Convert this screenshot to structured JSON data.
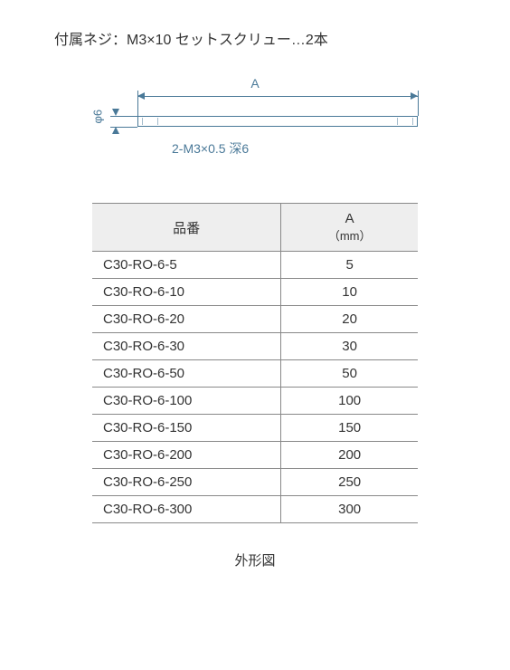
{
  "header": "付属ネジ：M3×10 セットスクリュー…2本",
  "diagram": {
    "dim_a_label": "A",
    "phi_label": "φ6",
    "hole_spec": "2-M3×0.5 深6"
  },
  "table": {
    "col1_header": "品番",
    "col2_header_line1": "A",
    "col2_header_line2": "（mm）",
    "rows": [
      {
        "part": "C30-RO-6-5",
        "a": "5"
      },
      {
        "part": "C30-RO-6-10",
        "a": "10"
      },
      {
        "part": "C30-RO-6-20",
        "a": "20"
      },
      {
        "part": "C30-RO-6-30",
        "a": "30"
      },
      {
        "part": "C30-RO-6-50",
        "a": "50"
      },
      {
        "part": "C30-RO-6-100",
        "a": "100"
      },
      {
        "part": "C30-RO-6-150",
        "a": "150"
      },
      {
        "part": "C30-RO-6-200",
        "a": "200"
      },
      {
        "part": "C30-RO-6-250",
        "a": "250"
      },
      {
        "part": "C30-RO-6-300",
        "a": "300"
      }
    ]
  },
  "caption": "外形図"
}
